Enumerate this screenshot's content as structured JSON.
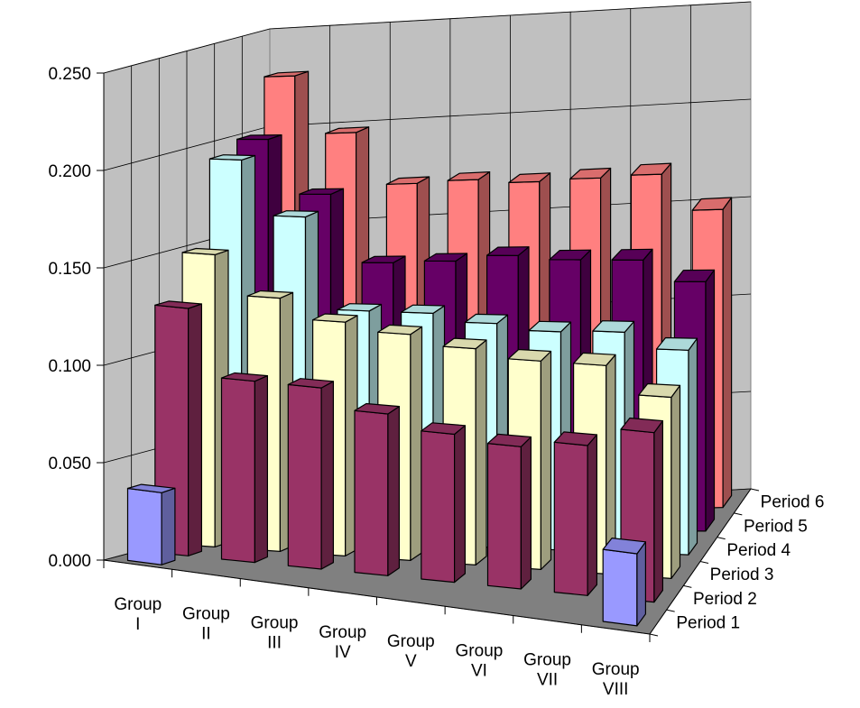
{
  "chart_data": {
    "type": "bar",
    "variant": "3d-grouped-depth",
    "title": "",
    "xlabel": "",
    "ylabel": "",
    "ylim": [
      0,
      0.25
    ],
    "yticks": [
      "0.000",
      "0.050",
      "0.100",
      "0.150",
      "0.200",
      "0.250"
    ],
    "grid": true,
    "legend": "none",
    "categories": [
      [
        "Group",
        "I"
      ],
      [
        "Group",
        "II"
      ],
      [
        "Group",
        "III"
      ],
      [
        "Group",
        "IV"
      ],
      [
        "Group",
        "V"
      ],
      [
        "Group",
        "VI"
      ],
      [
        "Group",
        "VII"
      ],
      [
        "Group",
        "VIII"
      ]
    ],
    "series": [
      {
        "name": "Period 1",
        "color": "#9999FF",
        "values": [
          0.037,
          null,
          null,
          null,
          null,
          null,
          null,
          0.037
        ]
      },
      {
        "name": "Period 2",
        "color": "#993366",
        "values": [
          0.127,
          0.093,
          0.093,
          0.083,
          0.076,
          0.073,
          0.077,
          0.087
        ]
      },
      {
        "name": "Period 3",
        "color": "#FFFFCC",
        "values": [
          0.15,
          0.13,
          0.12,
          0.116,
          0.111,
          0.107,
          0.107,
          0.093
        ]
      },
      {
        "name": "Period 4",
        "color": "#CCFFFF",
        "values": [
          0.194,
          0.166,
          0.119,
          0.119,
          0.115,
          0.112,
          0.113,
          0.105
        ]
      },
      {
        "name": "Period 5",
        "color": "#660066",
        "values": [
          0.2,
          0.172,
          0.137,
          0.138,
          0.141,
          0.139,
          0.139,
          0.128
        ]
      },
      {
        "name": "Period 6",
        "color": "#FF8080",
        "values": [
          0.228,
          0.198,
          0.171,
          0.172,
          0.17,
          0.171,
          0.172,
          0.153
        ]
      }
    ]
  }
}
